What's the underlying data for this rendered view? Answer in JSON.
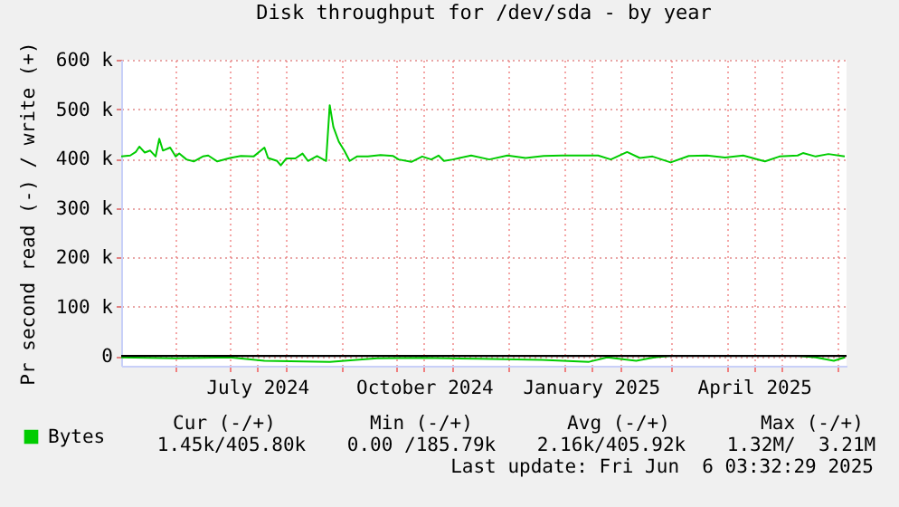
{
  "chart_data": {
    "type": "line",
    "title": "Disk throughput for /dev/sda - by year",
    "ylabel": "Pr second read (-) / write (+)",
    "xlim": [
      "2024-05-02",
      "2025-06-06"
    ],
    "xticks": [
      {
        "value": "2024-06-01",
        "label": null
      },
      {
        "value": "2024-07-01",
        "label": null
      },
      {
        "value": "2024-07-16",
        "label": "July 2024"
      },
      {
        "value": "2024-08-01",
        "label": null
      },
      {
        "value": "2024-09-01",
        "label": null
      },
      {
        "value": "2024-10-01",
        "label": null
      },
      {
        "value": "2024-10-16",
        "label": "October 2024"
      },
      {
        "value": "2024-11-01",
        "label": null
      },
      {
        "value": "2024-12-01",
        "label": null
      },
      {
        "value": "2025-01-01",
        "label": null
      },
      {
        "value": "2025-01-16",
        "label": "January 2025"
      },
      {
        "value": "2025-02-01",
        "label": null
      },
      {
        "value": "2025-03-01",
        "label": null
      },
      {
        "value": "2025-04-01",
        "label": null
      },
      {
        "value": "2025-04-16",
        "label": "April 2025"
      },
      {
        "value": "2025-05-01",
        "label": null
      },
      {
        "value": "2025-06-01",
        "label": null
      }
    ],
    "ylim": [
      -20000,
      600000
    ],
    "yticks": [
      {
        "value": 0,
        "label": "0"
      },
      {
        "value": 100000,
        "label": "100 k"
      },
      {
        "value": 200000,
        "label": "200 k"
      },
      {
        "value": 300000,
        "label": "300 k"
      },
      {
        "value": 400000,
        "label": "400 k"
      },
      {
        "value": 500000,
        "label": "500 k"
      },
      {
        "value": 600000,
        "label": "600 k"
      }
    ],
    "grid": true,
    "legend": "bottom left",
    "ref_lines": [
      {
        "axis": "y",
        "value": 0,
        "color": "#000000"
      }
    ],
    "series": [
      {
        "name": "Bytes",
        "color": "#00cc00",
        "x": [
          "2024-05-02",
          "2024-05-07",
          "2024-05-10",
          "2024-05-12",
          "2024-05-15",
          "2024-05-18",
          "2024-05-21",
          "2024-05-23",
          "2024-05-25",
          "2024-05-29",
          "2024-06-01",
          "2024-06-03",
          "2024-06-07",
          "2024-06-11",
          "2024-06-16",
          "2024-06-19",
          "2024-06-24",
          "2024-07-01",
          "2024-07-07",
          "2024-07-14",
          "2024-07-20",
          "2024-07-22",
          "2024-07-27",
          "2024-07-29",
          "2024-08-01",
          "2024-08-06",
          "2024-08-10",
          "2024-08-13",
          "2024-08-18",
          "2024-08-23",
          "2024-08-25",
          "2024-08-27",
          "2024-08-30",
          "2024-09-02",
          "2024-09-05",
          "2024-09-09",
          "2024-09-15",
          "2024-09-22",
          "2024-09-29",
          "2024-10-02",
          "2024-10-09",
          "2024-10-15",
          "2024-10-20",
          "2024-10-24",
          "2024-10-27",
          "2024-11-01",
          "2024-11-11",
          "2024-11-21",
          "2024-12-01",
          "2024-12-11",
          "2024-12-21",
          "2024-12-31",
          "2025-01-10",
          "2025-01-20",
          "2025-01-27",
          "2025-02-05",
          "2025-02-12",
          "2025-02-19",
          "2025-03-01",
          "2025-03-11",
          "2025-03-21",
          "2025-03-31",
          "2025-04-10",
          "2025-04-22",
          "2025-04-30",
          "2025-05-10",
          "2025-05-13",
          "2025-05-20",
          "2025-05-27",
          "2025-06-05"
        ],
        "values": [
          404000,
          406000,
          413000,
          424000,
          412000,
          416000,
          404000,
          440000,
          416000,
          422000,
          404000,
          410000,
          398000,
          394000,
          404000,
          406000,
          394000,
          401000,
          405000,
          404000,
          422000,
          401000,
          395000,
          386000,
          400000,
          400000,
          410000,
          395000,
          405000,
          395000,
          508000,
          464000,
          434000,
          416000,
          395000,
          404000,
          404000,
          407000,
          405000,
          398000,
          393000,
          404000,
          398000,
          406000,
          395000,
          398000,
          406000,
          398000,
          406000,
          401000,
          405000,
          406000,
          406000,
          406000,
          398000,
          413000,
          401000,
          404000,
          392000,
          405000,
          406000,
          402000,
          406000,
          394000,
          404000,
          406000,
          411000,
          404000,
          409000,
          404000
        ]
      },
      {
        "color": "#00cc00",
        "x": [
          "2024-05-02",
          "2024-06-01",
          "2024-07-01",
          "2024-07-20",
          "2024-08-25",
          "2024-09-20",
          "2024-10-15",
          "2024-11-15",
          "2024-12-20",
          "2025-01-15",
          "2025-01-25",
          "2025-02-10",
          "2025-02-20",
          "2025-03-01",
          "2025-05-10",
          "2025-05-20",
          "2025-05-30",
          "2025-06-05"
        ],
        "values": [
          -3000,
          -5000,
          -3000,
          -10000,
          -12000,
          -5000,
          -4000,
          -6000,
          -8000,
          -12000,
          -3000,
          -10000,
          -3000,
          0,
          0,
          -3000,
          -10000,
          -3000
        ]
      }
    ],
    "annotations": [
      "Cur (-/+)",
      "Min (-/+)",
      "Avg (-/+)",
      "Max (-/+)",
      "1.45k/405.80k",
      "0.00 /185.79k",
      "2.16k/405.92k",
      "1.32M/  3.21M",
      "Last update: Fri Jun  6 03:32:29 2025"
    ]
  }
}
